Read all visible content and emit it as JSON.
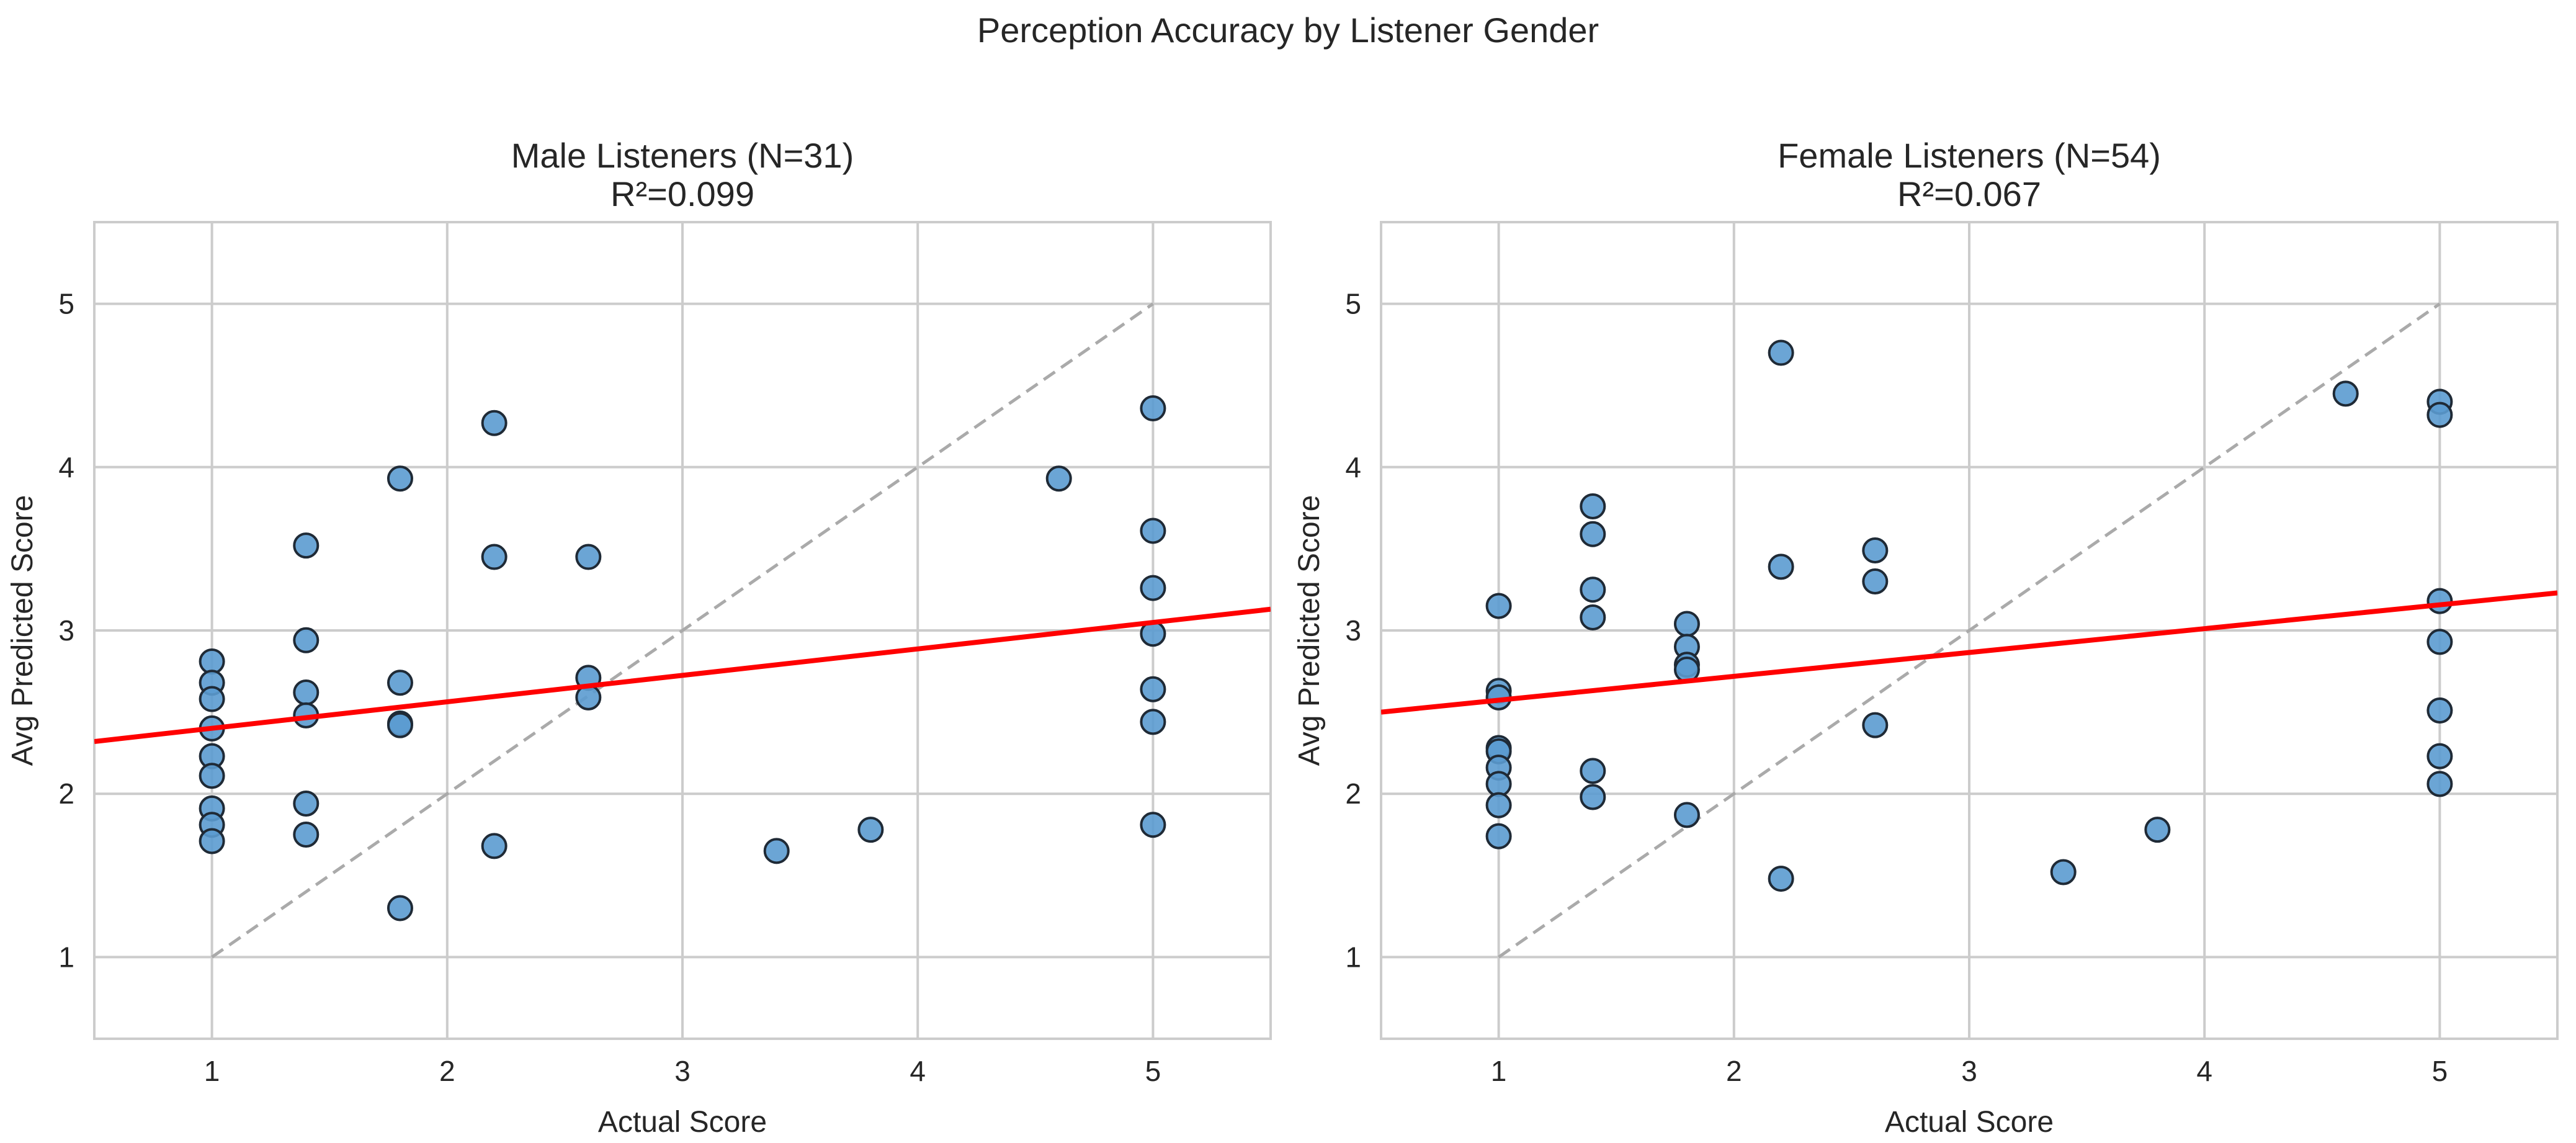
{
  "chart_data": [
    {
      "type": "scatter",
      "title": "Male Listeners (N=31)",
      "subtitle": "R²=0.099",
      "xlabel": "Actual Score",
      "ylabel": "Avg Predicted Score",
      "xlim": [
        0.5,
        5.5
      ],
      "ylim": [
        0.5,
        5.5
      ],
      "xticks": [
        "1",
        "2",
        "3",
        "4",
        "5"
      ],
      "yticks": [
        "1",
        "2",
        "3",
        "4",
        "5"
      ],
      "grid": true,
      "regression": {
        "x": [
          0.5,
          5.5
        ],
        "y": [
          2.32,
          3.13
        ],
        "color": "#ff0000"
      },
      "identity_line": {
        "x": [
          1,
          5
        ],
        "y": [
          1,
          5
        ],
        "color": "#aaaaaa"
      },
      "points": [
        [
          1,
          2.81
        ],
        [
          1,
          2.68
        ],
        [
          1,
          2.58
        ],
        [
          1,
          2.4
        ],
        [
          1,
          2.23
        ],
        [
          1,
          2.11
        ],
        [
          1,
          1.91
        ],
        [
          1,
          1.81
        ],
        [
          1,
          1.71
        ],
        [
          1.4,
          3.52
        ],
        [
          1.4,
          2.94
        ],
        [
          1.4,
          2.62
        ],
        [
          1.4,
          2.48
        ],
        [
          1.4,
          1.94
        ],
        [
          1.4,
          1.75
        ],
        [
          1.8,
          3.93
        ],
        [
          1.8,
          2.68
        ],
        [
          1.8,
          2.43
        ],
        [
          1.8,
          2.42
        ],
        [
          1.8,
          1.3
        ],
        [
          2.2,
          4.27
        ],
        [
          2.2,
          3.45
        ],
        [
          2.2,
          1.68
        ],
        [
          2.6,
          3.45
        ],
        [
          2.6,
          2.71
        ],
        [
          2.6,
          2.59
        ],
        [
          3.4,
          1.65
        ],
        [
          3.8,
          1.78
        ],
        [
          4.6,
          3.93
        ],
        [
          5,
          4.36
        ],
        [
          5,
          3.61
        ],
        [
          5,
          3.26
        ],
        [
          5,
          2.98
        ],
        [
          5,
          2.64
        ],
        [
          5,
          2.44
        ],
        [
          5,
          1.81
        ]
      ]
    },
    {
      "type": "scatter",
      "title": "Female Listeners (N=54)",
      "subtitle": "R²=0.067",
      "xlabel": "Actual Score",
      "ylabel": "Avg Predicted Score",
      "xlim": [
        0.5,
        5.5
      ],
      "ylim": [
        0.5,
        5.5
      ],
      "xticks": [
        "1",
        "2",
        "3",
        "4",
        "5"
      ],
      "yticks": [
        "1",
        "2",
        "3",
        "4",
        "5"
      ],
      "grid": true,
      "regression": {
        "x": [
          0.5,
          5.5
        ],
        "y": [
          2.5,
          3.23
        ],
        "color": "#ff0000"
      },
      "identity_line": {
        "x": [
          1,
          5
        ],
        "y": [
          1,
          5
        ],
        "color": "#aaaaaa"
      },
      "points": [
        [
          1,
          3.15
        ],
        [
          1,
          2.63
        ],
        [
          1,
          2.59
        ],
        [
          1,
          2.28
        ],
        [
          1,
          2.26
        ],
        [
          1,
          2.16
        ],
        [
          1,
          2.06
        ],
        [
          1,
          1.93
        ],
        [
          1,
          1.74
        ],
        [
          1.4,
          3.76
        ],
        [
          1.4,
          3.59
        ],
        [
          1.4,
          3.25
        ],
        [
          1.4,
          3.08
        ],
        [
          1.4,
          2.14
        ],
        [
          1.4,
          1.98
        ],
        [
          1.8,
          3.04
        ],
        [
          1.8,
          2.9
        ],
        [
          1.8,
          2.79
        ],
        [
          1.8,
          2.76
        ],
        [
          1.8,
          1.87
        ],
        [
          2.2,
          4.7
        ],
        [
          2.2,
          3.39
        ],
        [
          2.2,
          1.48
        ],
        [
          2.6,
          3.49
        ],
        [
          2.6,
          3.3
        ],
        [
          2.6,
          2.42
        ],
        [
          3.4,
          1.52
        ],
        [
          3.8,
          1.78
        ],
        [
          4.6,
          4.45
        ],
        [
          5,
          4.4
        ],
        [
          5,
          4.32
        ],
        [
          5,
          3.18
        ],
        [
          5,
          2.93
        ],
        [
          5,
          2.51
        ],
        [
          5,
          2.23
        ],
        [
          5,
          2.06
        ]
      ]
    }
  ],
  "figure": {
    "suptitle": "Perception Accuracy by Listener Gender",
    "marker_fill": "#5b9bd0",
    "marker_edge": "#1f2a36",
    "grid_color": "#cccccc"
  }
}
